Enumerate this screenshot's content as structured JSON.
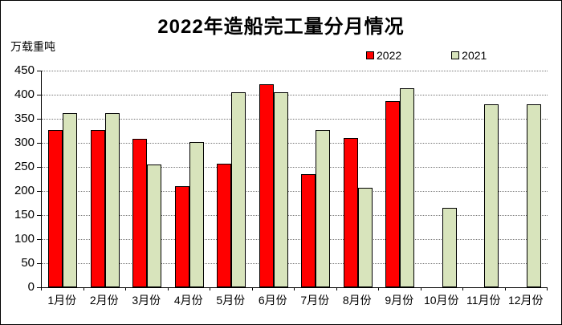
{
  "chart_data": {
    "type": "bar",
    "title": "2022年造船完工量分月情况",
    "ylabel": "万载重吨",
    "xlabel": "",
    "categories": [
      "1月份",
      "2月份",
      "3月份",
      "4月份",
      "5月份",
      "6月份",
      "7月份",
      "8月份",
      "9月份",
      "10月份",
      "11月份",
      "12月份"
    ],
    "series": [
      {
        "name": "2022",
        "color": "#FF0000",
        "values": [
          327,
          327,
          308,
          210,
          256,
          422,
          235,
          310,
          386,
          null,
          null,
          null
        ]
      },
      {
        "name": "2021",
        "color": "#D8E4BC",
        "values": [
          361,
          361,
          255,
          302,
          405,
          405,
          327,
          207,
          414,
          165,
          380,
          380
        ]
      }
    ],
    "ylim": [
      0,
      450
    ],
    "yticks": [
      0,
      50,
      100,
      150,
      200,
      250,
      300,
      350,
      400,
      450
    ],
    "grid": true,
    "gridline_style": "dotted",
    "legend_position": "top-right",
    "bar_border_color": "#000000",
    "background_color": "#FFFFFF"
  }
}
